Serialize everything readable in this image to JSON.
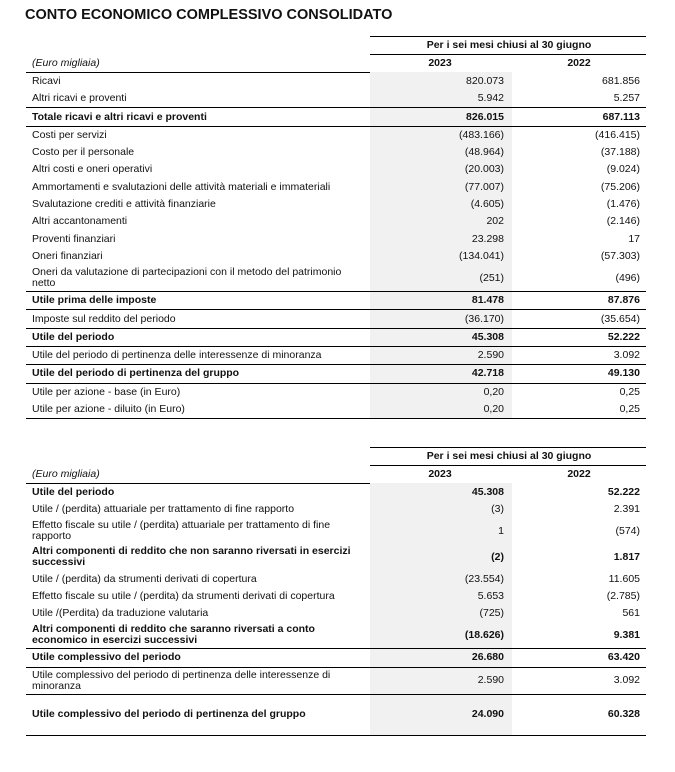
{
  "title": "CONTO ECONOMICO COMPLESSIVO CONSOLIDATO",
  "period_header": "Per i sei mesi chiusi al 30 giugno",
  "unit": "(Euro migliaia)",
  "years": [
    "2023",
    "2022"
  ],
  "table1": [
    {
      "label": "Ricavi",
      "v2023": "820.073",
      "v2022": "681.856"
    },
    {
      "label": "Altri ricavi e proventi",
      "v2023": "5.942",
      "v2022": "5.257"
    },
    {
      "label": "Totale ricavi e altri ricavi e proventi",
      "v2023": "826.015",
      "v2022": "687.113",
      "bold": true
    },
    {
      "label": "Costi per servizi",
      "v2023": "(483.166)",
      "v2022": "(416.415)"
    },
    {
      "label": "Costo per il personale",
      "v2023": "(48.964)",
      "v2022": "(37.188)"
    },
    {
      "label": "Altri costi e oneri operativi",
      "v2023": "(20.003)",
      "v2022": "(9.024)"
    },
    {
      "label": "Ammortamenti e svalutazioni delle attività materiali e immateriali",
      "v2023": "(77.007)",
      "v2022": "(75.206)"
    },
    {
      "label": "Svalutazione crediti e attività finanziarie",
      "v2023": "(4.605)",
      "v2022": "(1.476)"
    },
    {
      "label": "Altri accantonamenti",
      "v2023": "202",
      "v2022": "(2.146)"
    },
    {
      "label": "Proventi finanziari",
      "v2023": "23.298",
      "v2022": "17"
    },
    {
      "label": "Oneri finanziari",
      "v2023": "(134.041)",
      "v2022": "(57.303)"
    },
    {
      "label": "Oneri da valutazione di partecipazioni con il metodo del patrimonio netto",
      "v2023": "(251)",
      "v2022": "(496)",
      "tall": true
    },
    {
      "label": "Utile prima delle imposte",
      "v2023": "81.478",
      "v2022": "87.876",
      "bold": true
    },
    {
      "label": "Imposte sul reddito del periodo",
      "v2023": "(36.170)",
      "v2022": "(35.654)"
    },
    {
      "label": "Utile del periodo",
      "v2023": "45.308",
      "v2022": "52.222",
      "bold": true
    },
    {
      "label": "Utile del periodo di pertinenza delle interessenze di minoranza",
      "v2023": "2.590",
      "v2022": "3.092"
    },
    {
      "label": "Utile del periodo di pertinenza del gruppo",
      "v2023": "42.718",
      "v2022": "49.130",
      "bold": true
    },
    {
      "label": "Utile per azione - base (in Euro)",
      "v2023": "0,20",
      "v2022": "0,25"
    },
    {
      "label": "Utile per azione - diluito (in Euro)",
      "v2023": "0,20",
      "v2022": "0,25",
      "end": true
    }
  ],
  "table2": [
    {
      "label": "Utile del periodo",
      "v2023": "45.308",
      "v2022": "52.222",
      "boldtext": true
    },
    {
      "label": "Utile / (perdita) attuariale per trattamento di fine rapporto",
      "v2023": "(3)",
      "v2022": "2.391"
    },
    {
      "label": "Effetto fiscale su utile / (perdita) attuariale per trattamento di fine rapporto",
      "v2023": "1",
      "v2022": "(574)",
      "tall": true
    },
    {
      "label": "Altri componenti di reddito che non saranno riversati in esercizi successivi",
      "v2023": "(2)",
      "v2022": "1.817",
      "boldtext": true,
      "tall": true
    },
    {
      "label": "Utile / (perdita) da strumenti derivati di copertura",
      "v2023": "(23.554)",
      "v2022": "11.605"
    },
    {
      "label": "Effetto fiscale su utile / (perdita) da strumenti derivati di copertura",
      "v2023": "5.653",
      "v2022": "(2.785)"
    },
    {
      "label": "Utile /(Perdita) da traduzione valutaria",
      "v2023": "(725)",
      "v2022": "561"
    },
    {
      "label": "Altri componenti di reddito che saranno riversati a conto economico in esercizi successivi",
      "v2023": "(18.626)",
      "v2022": "9.381",
      "boldtext": true,
      "tall": true
    },
    {
      "label": "Utile complessivo del periodo",
      "v2023": "26.680",
      "v2022": "63.420",
      "bold": true
    },
    {
      "label": "Utile complessivo del periodo di pertinenza delle interessenze di minoranza",
      "v2023": "2.590",
      "v2022": "3.092",
      "tall": true
    },
    {
      "label": "Utile complessivo del periodo di pertinenza del gruppo",
      "v2023": "24.090",
      "v2022": "60.328",
      "bold": true,
      "vtall": true,
      "end": true
    }
  ]
}
